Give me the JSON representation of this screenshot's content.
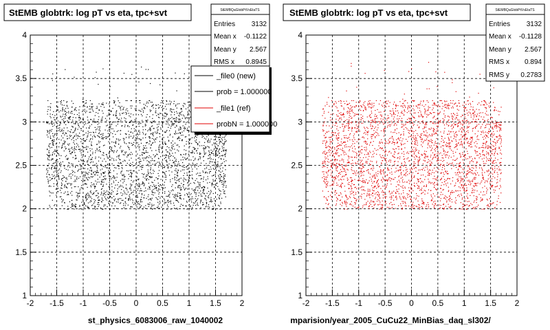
{
  "colors": {
    "series_new": "#000000",
    "series_ref": "#e00000",
    "frame": "#000000",
    "grid": "#000000"
  },
  "footer_text": "",
  "chart_data": [
    {
      "type": "scatter",
      "title": "StEMB globtrk: log pT vs eta, tpc+svt",
      "xlabel": "st_physics_6083006_raw_1040002",
      "ylabel": "",
      "xlim": [
        -2,
        2
      ],
      "ylim": [
        1,
        4
      ],
      "x_ticks": [
        "-2",
        "-1.5",
        "-1",
        "-0.5",
        "0",
        "0.5",
        "1",
        "1.5",
        "2"
      ],
      "y_ticks": [
        "1",
        "1.5",
        "2",
        "2.5",
        "3",
        "3.5",
        "4"
      ],
      "grid": true,
      "stats": {
        "name": "StEMBQaGlobPtVsEtaTS",
        "rows": [
          {
            "label": "Entries",
            "value": "3132"
          },
          {
            "label": "Mean x",
            "value": "-0.1122"
          },
          {
            "label": "Mean y",
            "value": "2.567"
          },
          {
            "label": "RMS x",
            "value": "0.8945"
          }
        ]
      },
      "legend": {
        "placement": "top-right",
        "entries": [
          {
            "label": "_file0 (new)",
            "color": "#000000"
          },
          {
            "label": "prob = 1.000000",
            "color": "#000000"
          },
          {
            "label": "_file1 (ref)",
            "color": "#e00000"
          },
          {
            "label": "probN = 1.000000",
            "color": "#e00000"
          }
        ]
      },
      "series": [
        {
          "name": "_file0 (new)",
          "color": "#000000",
          "entries": 3132,
          "x_range": [
            -1.7,
            1.7
          ],
          "y_range": [
            2.0,
            3.25
          ],
          "mean_x": -0.1122,
          "mean_y": 2.567
        }
      ]
    },
    {
      "type": "scatter",
      "title": "StEMB globtrk: log pT vs eta, tpc+svt",
      "xlabel": "mparision/year_2005_CuCu22_MinBias_daq_sl302/",
      "ylabel": "",
      "xlim": [
        -2,
        2
      ],
      "ylim": [
        1,
        4
      ],
      "x_ticks": [
        "-2",
        "-1.5",
        "-1",
        "-0.5",
        "0",
        "0.5",
        "1",
        "1.5",
        "2"
      ],
      "y_ticks": [
        "1",
        "1.5",
        "2",
        "2.5",
        "3",
        "3.5",
        "4"
      ],
      "grid": true,
      "stats": {
        "name": "StEMBQaGlobPtVsEtaTS",
        "rows": [
          {
            "label": "Entries",
            "value": "3132"
          },
          {
            "label": "Mean x",
            "value": "-0.1128"
          },
          {
            "label": "Mean y",
            "value": "2.567"
          },
          {
            "label": "RMS x",
            "value": "0.894"
          },
          {
            "label": "RMS y",
            "value": "0.2783"
          }
        ]
      },
      "series": [
        {
          "name": "_file1 (ref)",
          "color": "#e00000",
          "entries": 3132,
          "x_range": [
            -1.7,
            1.7
          ],
          "y_range": [
            2.0,
            3.25
          ],
          "mean_x": -0.1128,
          "mean_y": 2.567
        }
      ]
    }
  ]
}
